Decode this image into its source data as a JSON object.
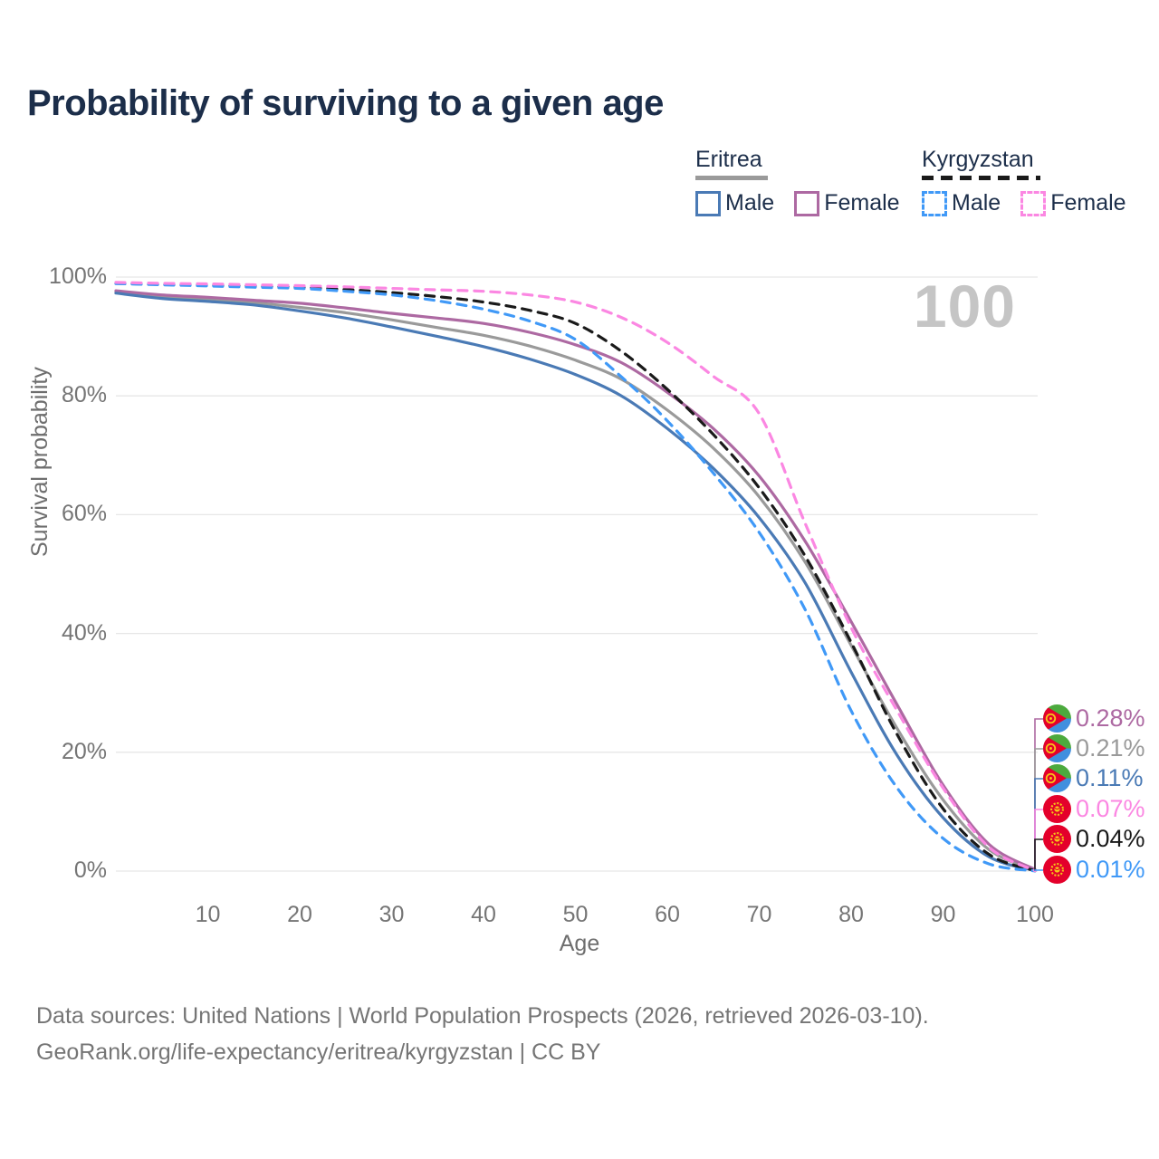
{
  "title": "Probability of surviving to a given age",
  "watermark": "100",
  "legend": {
    "groups": [
      {
        "id": "eritrea",
        "name": "Eritrea",
        "rule_style": "solid",
        "rule_color": "#9a9a9a",
        "items": [
          {
            "label": "Male",
            "color": "#4a7ab5",
            "dashed": false
          },
          {
            "label": "Female",
            "color": "#ad69a2",
            "dashed": false
          }
        ]
      },
      {
        "id": "kyrgyzstan",
        "name": "Kyrgyzstan",
        "rule_style": "dashed",
        "rule_color": "#1a1a1a",
        "items": [
          {
            "label": "Male",
            "color": "#4099f7",
            "dashed": true
          },
          {
            "label": "Female",
            "color": "#fb87e2",
            "dashed": true
          }
        ]
      }
    ]
  },
  "axes": {
    "ylabel": "Survival probability",
    "xlabel": "Age",
    "y_ticks": [
      {
        "label": "100%",
        "value": 100
      },
      {
        "label": "80%",
        "value": 80
      },
      {
        "label": "60%",
        "value": 60
      },
      {
        "label": "40%",
        "value": 40
      },
      {
        "label": "20%",
        "value": 20
      },
      {
        "label": "0%",
        "value": 0
      }
    ],
    "x_ticks": [
      10,
      20,
      30,
      40,
      50,
      60,
      70,
      80,
      90,
      100
    ]
  },
  "chart_data": {
    "type": "line",
    "title": "Probability of surviving to a given age",
    "xlabel": "Age",
    "ylabel": "Survival probability",
    "xlim": [
      0,
      100
    ],
    "ylim": [
      0,
      100
    ],
    "grid": "horizontal",
    "legend_position": "top-right",
    "x": [
      0,
      5,
      10,
      15,
      20,
      25,
      30,
      35,
      40,
      45,
      50,
      55,
      60,
      65,
      70,
      75,
      80,
      85,
      90,
      95,
      100
    ],
    "series": [
      {
        "name": "Eritrea Female",
        "country": "eritrea",
        "sex": "female",
        "color": "#ad69a2",
        "dashed": false,
        "values": [
          97.7,
          97.0,
          96.6,
          96.1,
          95.6,
          94.8,
          93.9,
          93.1,
          92.2,
          90.7,
          88.6,
          85.6,
          80.6,
          74.5,
          66.5,
          55.5,
          42.0,
          28.0,
          14.5,
          4.5,
          0.28
        ]
      },
      {
        "name": "Eritrea Both",
        "country": "eritrea",
        "sex": "both",
        "color": "#9a9a9a",
        "dashed": false,
        "values": [
          97.5,
          96.7,
          96.2,
          95.7,
          94.9,
          94.0,
          92.8,
          91.5,
          90.2,
          88.4,
          86.0,
          82.8,
          77.6,
          71.2,
          63.0,
          52.0,
          38.0,
          24.0,
          12.0,
          3.6,
          0.21
        ]
      },
      {
        "name": "Eritrea Male",
        "country": "eritrea",
        "sex": "male",
        "color": "#4a7ab5",
        "dashed": false,
        "values": [
          97.3,
          96.4,
          95.9,
          95.3,
          94.3,
          93.1,
          91.6,
          90.0,
          88.3,
          86.2,
          83.6,
          80.0,
          74.5,
          67.8,
          59.5,
          48.5,
          33.5,
          19.5,
          9.0,
          2.4,
          0.11
        ]
      },
      {
        "name": "Kyrgyzstan Female",
        "country": "kyrgyzstan",
        "sex": "female",
        "color": "#fb87e2",
        "dashed": true,
        "values": [
          99.1,
          98.95,
          98.85,
          98.7,
          98.55,
          98.35,
          98.1,
          97.85,
          97.6,
          97.0,
          95.8,
          93.2,
          89.0,
          83.3,
          77.0,
          58.5,
          41.0,
          27.0,
          14.0,
          4.0,
          0.07
        ]
      },
      {
        "name": "Kyrgyzstan Both",
        "country": "kyrgyzstan",
        "sex": "both",
        "color": "#1a1a1a",
        "dashed": true,
        "values": [
          98.95,
          98.75,
          98.6,
          98.45,
          98.25,
          97.9,
          97.4,
          96.7,
          95.8,
          94.4,
          92.2,
          87.5,
          81.1,
          73.5,
          64.5,
          53.0,
          38.5,
          23.0,
          10.5,
          2.8,
          0.04
        ]
      },
      {
        "name": "Kyrgyzstan Male",
        "country": "kyrgyzstan",
        "sex": "male",
        "color": "#4099f7",
        "dashed": true,
        "values": [
          98.9,
          98.7,
          98.5,
          98.3,
          98.1,
          97.6,
          97.0,
          96.0,
          94.6,
          92.6,
          89.5,
          83.2,
          75.8,
          67.0,
          57.0,
          44.0,
          27.0,
          14.0,
          5.5,
          1.2,
          0.01
        ]
      }
    ],
    "end_labels": [
      {
        "text": "0.28%",
        "color": "#ad69a2",
        "flag": "eritrea",
        "series": "Eritrea Female"
      },
      {
        "text": "0.21%",
        "color": "#9a9a9a",
        "flag": "eritrea",
        "series": "Eritrea Both"
      },
      {
        "text": "0.11%",
        "color": "#4a7ab5",
        "flag": "eritrea",
        "series": "Eritrea Male"
      },
      {
        "text": "0.07%",
        "color": "#fb87e2",
        "flag": "kyrgyzstan",
        "series": "Kyrgyzstan Female"
      },
      {
        "text": "0.04%",
        "color": "#1a1a1a",
        "flag": "kyrgyzstan",
        "series": "Kyrgyzstan Both"
      },
      {
        "text": "0.01%",
        "color": "#4099f7",
        "flag": "kyrgyzstan",
        "series": "Kyrgyzstan Male"
      }
    ],
    "hover_age": "100"
  },
  "footer": {
    "line1": "Data sources: United Nations | World Population Prospects (2026, retrieved 2026-03-10).",
    "line2": "GeoRank.org/life-expectancy/eritrea/kyrgyzstan | CC BY"
  }
}
